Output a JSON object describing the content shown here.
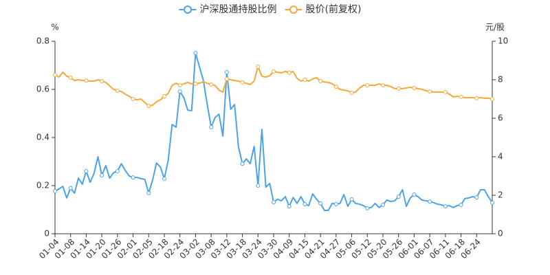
{
  "chart_data": {
    "type": "line",
    "y_label": "%",
    "y2_label": "元/股",
    "categories": [
      "01-04",
      null,
      null,
      null,
      "01-08",
      null,
      null,
      null,
      "01-14",
      null,
      null,
      null,
      "01-20",
      null,
      null,
      null,
      "01-26",
      null,
      null,
      null,
      "02-01",
      null,
      null,
      null,
      "02-05",
      null,
      null,
      null,
      "02-18",
      null,
      null,
      null,
      "02-24",
      null,
      null,
      null,
      "03-02",
      null,
      null,
      null,
      "03-08",
      null,
      null,
      null,
      "03-12",
      null,
      null,
      null,
      "03-18",
      null,
      null,
      null,
      "03-24",
      null,
      null,
      null,
      "03-30",
      null,
      null,
      null,
      "04-09",
      null,
      null,
      null,
      "04-15",
      null,
      null,
      null,
      "04-21",
      null,
      null,
      null,
      "04-27",
      null,
      null,
      null,
      "05-06",
      null,
      null,
      null,
      "05-12",
      null,
      null,
      null,
      "05-20",
      null,
      null,
      null,
      "05-26",
      null,
      null,
      null,
      "06-01",
      null,
      null,
      null,
      "06-07",
      null,
      null,
      null,
      "06-11",
      null,
      null,
      null,
      "06-18",
      null,
      null,
      null,
      "06-24",
      null,
      null,
      null,
      null
    ],
    "series": [
      {
        "name": "沪深股通持股比例",
        "color": "#4aa3e8",
        "values": [
          0.177,
          0.186,
          0.197,
          0.149,
          0.19,
          0.169,
          0.231,
          0.206,
          0.26,
          0.214,
          0.251,
          0.32,
          0.243,
          0.283,
          0.231,
          0.254,
          0.26,
          0.291,
          0.263,
          0.24,
          0.234,
          0.234,
          0.229,
          0.226,
          0.169,
          0.223,
          0.294,
          0.277,
          0.229,
          0.306,
          0.454,
          0.443,
          0.591,
          0.566,
          0.514,
          0.511,
          0.751,
          0.694,
          0.637,
          0.537,
          0.443,
          0.483,
          0.497,
          0.406,
          0.671,
          0.517,
          0.537,
          0.36,
          0.291,
          0.311,
          0.291,
          0.363,
          0.2,
          0.434,
          0.194,
          0.209,
          0.131,
          0.143,
          0.137,
          0.154,
          0.114,
          0.151,
          0.126,
          0.154,
          0.123,
          0.117,
          0.166,
          0.143,
          0.126,
          0.097,
          0.097,
          0.126,
          0.123,
          0.126,
          0.163,
          0.114,
          0.143,
          0.126,
          0.123,
          0.117,
          0.106,
          0.109,
          0.126,
          0.109,
          0.12,
          0.14,
          0.134,
          0.137,
          0.154,
          0.183,
          0.114,
          0.149,
          0.163,
          0.154,
          0.14,
          0.137,
          0.134,
          0.129,
          0.123,
          0.12,
          0.114,
          0.117,
          0.109,
          0.117,
          0.12,
          0.146,
          0.149,
          0.154,
          0.151,
          0.183,
          0.183,
          0.154,
          0.129
        ]
      },
      {
        "name": "股价(前复权)",
        "color": "#f5a83a",
        "axis": "y2",
        "values": [
          8.25,
          8.14,
          8.39,
          8.18,
          8.11,
          7.96,
          8.0,
          7.96,
          7.96,
          7.93,
          7.93,
          8.0,
          7.93,
          7.86,
          7.68,
          7.5,
          7.43,
          7.39,
          7.25,
          7.14,
          7.0,
          6.96,
          7.0,
          6.82,
          6.64,
          6.68,
          6.86,
          6.96,
          7.14,
          7.29,
          7.71,
          7.82,
          7.71,
          7.79,
          7.86,
          7.79,
          7.79,
          7.82,
          7.89,
          7.82,
          7.75,
          7.71,
          7.46,
          7.36,
          8.04,
          8.0,
          7.96,
          7.93,
          7.86,
          7.82,
          7.75,
          7.93,
          8.68,
          8.18,
          8.14,
          8.21,
          8.43,
          8.39,
          8.36,
          8.43,
          8.36,
          8.43,
          8.07,
          7.93,
          8.0,
          7.93,
          8.04,
          8.11,
          7.93,
          7.89,
          7.86,
          7.79,
          7.64,
          7.5,
          7.46,
          7.43,
          7.32,
          7.36,
          7.57,
          7.71,
          7.71,
          7.71,
          7.71,
          7.79,
          7.71,
          7.71,
          7.64,
          7.54,
          7.54,
          7.54,
          7.57,
          7.61,
          7.57,
          7.54,
          7.5,
          7.43,
          7.39,
          7.36,
          7.36,
          7.36,
          7.36,
          7.25,
          7.11,
          7.14,
          7.11,
          7.07,
          7.07,
          7.07,
          7.04,
          7.07,
          7.04,
          7.04,
          7.0
        ]
      }
    ],
    "ylim": [
      0,
      0.8
    ],
    "yticks": [
      0,
      0.2,
      0.4,
      0.6,
      0.8
    ],
    "y2lim": [
      0,
      10
    ],
    "y2ticks": [
      0,
      2,
      4,
      6,
      8,
      10
    ],
    "grid": false,
    "legend": "top"
  }
}
